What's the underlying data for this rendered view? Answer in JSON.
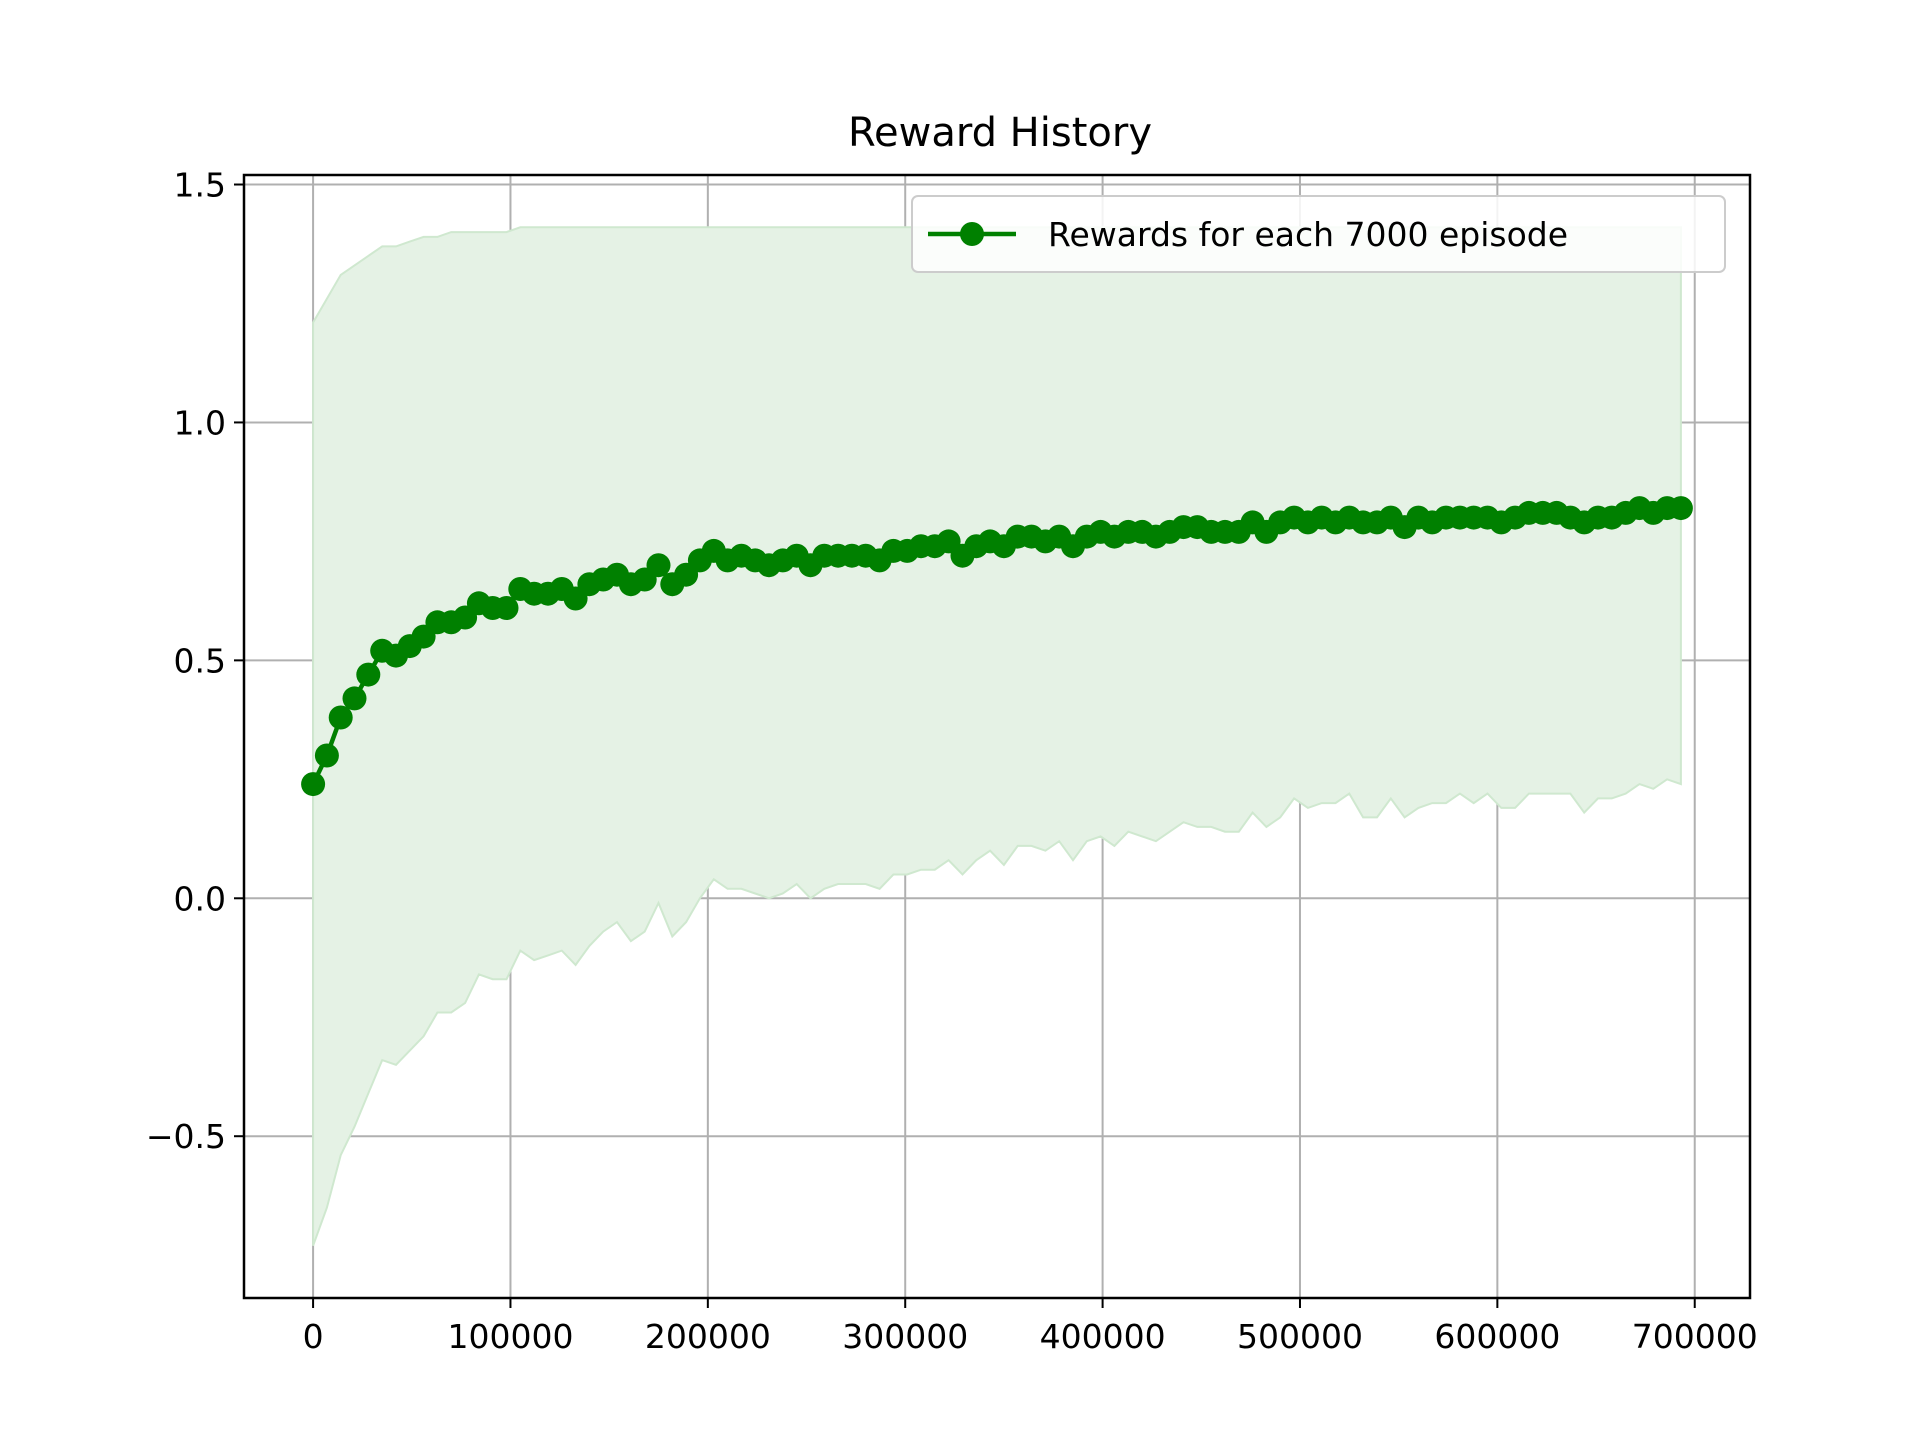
{
  "colors": {
    "line": "#008000",
    "band_fill": "#e5f2e5",
    "band_edge": "#cfe8cf",
    "grid": "#b0b0b0",
    "axis": "#000000",
    "legend_border": "#cccccc"
  },
  "chart_data": {
    "type": "line",
    "title": "Reward History",
    "xlabel": "",
    "ylabel": "",
    "xlim": [
      -35000,
      728000
    ],
    "ylim": [
      -0.84,
      1.52
    ],
    "xticks": [
      0,
      100000,
      200000,
      300000,
      400000,
      500000,
      600000,
      700000
    ],
    "xtick_labels": [
      "0",
      "100000",
      "200000",
      "300000",
      "400000",
      "500000",
      "600000",
      "700000"
    ],
    "yticks": [
      -0.5,
      0.0,
      0.5,
      1.0,
      1.5
    ],
    "ytick_labels": [
      "−0.5",
      "0.0",
      "0.5",
      "1.0",
      "1.5"
    ],
    "grid": true,
    "legend_position": "upper-right",
    "series": [
      {
        "name": "Rewards for each 7000 episode",
        "marker": "circle",
        "x": [
          0,
          7000,
          14000,
          21000,
          28000,
          35000,
          42000,
          49000,
          56000,
          63000,
          70000,
          77000,
          84000,
          91000,
          98000,
          105000,
          112000,
          119000,
          126000,
          133000,
          140000,
          147000,
          154000,
          161000,
          168000,
          175000,
          182000,
          189000,
          196000,
          203000,
          210000,
          217000,
          224000,
          231000,
          238000,
          245000,
          252000,
          259000,
          266000,
          273000,
          280000,
          287000,
          294000,
          301000,
          308000,
          315000,
          322000,
          329000,
          336000,
          343000,
          350000,
          357000,
          364000,
          371000,
          378000,
          385000,
          392000,
          399000,
          406000,
          413000,
          420000,
          427000,
          434000,
          441000,
          448000,
          455000,
          462000,
          469000,
          476000,
          483000,
          490000,
          497000,
          504000,
          511000,
          518000,
          525000,
          532000,
          539000,
          546000,
          553000,
          560000,
          567000,
          574000,
          581000,
          588000,
          595000,
          602000,
          609000,
          616000,
          623000,
          630000,
          637000,
          644000,
          651000,
          658000,
          665000,
          672000,
          679000,
          686000,
          693000
        ],
        "values": [
          0.24,
          0.3,
          0.38,
          0.42,
          0.47,
          0.52,
          0.51,
          0.53,
          0.55,
          0.58,
          0.58,
          0.59,
          0.62,
          0.61,
          0.61,
          0.65,
          0.64,
          0.64,
          0.65,
          0.63,
          0.66,
          0.67,
          0.68,
          0.66,
          0.67,
          0.7,
          0.66,
          0.68,
          0.71,
          0.73,
          0.71,
          0.72,
          0.71,
          0.7,
          0.71,
          0.72,
          0.7,
          0.72,
          0.72,
          0.72,
          0.72,
          0.71,
          0.73,
          0.73,
          0.74,
          0.74,
          0.75,
          0.72,
          0.74,
          0.75,
          0.74,
          0.76,
          0.76,
          0.75,
          0.76,
          0.74,
          0.76,
          0.77,
          0.76,
          0.77,
          0.77,
          0.76,
          0.77,
          0.78,
          0.78,
          0.77,
          0.77,
          0.77,
          0.79,
          0.77,
          0.79,
          0.8,
          0.79,
          0.8,
          0.79,
          0.8,
          0.79,
          0.79,
          0.8,
          0.78,
          0.8,
          0.79,
          0.8,
          0.8,
          0.8,
          0.8,
          0.79,
          0.8,
          0.81,
          0.81,
          0.81,
          0.8,
          0.79,
          0.8,
          0.8,
          0.81,
          0.82,
          0.81,
          0.82,
          0.82
        ],
        "upper": [
          1.21,
          1.26,
          1.31,
          1.33,
          1.35,
          1.37,
          1.37,
          1.38,
          1.39,
          1.39,
          1.4,
          1.4,
          1.4,
          1.4,
          1.4,
          1.41,
          1.41,
          1.41,
          1.41,
          1.41,
          1.41,
          1.41,
          1.41,
          1.41,
          1.41,
          1.41,
          1.41,
          1.41,
          1.41,
          1.41,
          1.41,
          1.41,
          1.41,
          1.41,
          1.41,
          1.41,
          1.41,
          1.41,
          1.41,
          1.41,
          1.41,
          1.41,
          1.41,
          1.41,
          1.41,
          1.41,
          1.41,
          1.41,
          1.41,
          1.41,
          1.41,
          1.41,
          1.41,
          1.41,
          1.41,
          1.41,
          1.41,
          1.41,
          1.41,
          1.41,
          1.41,
          1.41,
          1.41,
          1.41,
          1.41,
          1.41,
          1.41,
          1.41,
          1.41,
          1.41,
          1.41,
          1.41,
          1.41,
          1.41,
          1.41,
          1.41,
          1.41,
          1.41,
          1.41,
          1.41,
          1.41,
          1.41,
          1.41,
          1.41,
          1.41,
          1.41,
          1.41,
          1.41,
          1.41,
          1.41,
          1.41,
          1.41,
          1.41,
          1.41,
          1.41,
          1.41,
          1.41,
          1.41,
          1.41,
          1.41
        ],
        "lower": [
          -0.73,
          -0.65,
          -0.54,
          -0.48,
          -0.41,
          -0.34,
          -0.35,
          -0.32,
          -0.29,
          -0.24,
          -0.24,
          -0.22,
          -0.16,
          -0.17,
          -0.17,
          -0.11,
          -0.13,
          -0.12,
          -0.11,
          -0.14,
          -0.1,
          -0.07,
          -0.05,
          -0.09,
          -0.07,
          -0.01,
          -0.08,
          -0.05,
          0.0,
          0.04,
          0.02,
          0.02,
          0.01,
          0.0,
          0.01,
          0.03,
          0.0,
          0.02,
          0.03,
          0.03,
          0.03,
          0.02,
          0.05,
          0.05,
          0.06,
          0.06,
          0.08,
          0.05,
          0.08,
          0.1,
          0.07,
          0.11,
          0.11,
          0.1,
          0.12,
          0.08,
          0.12,
          0.13,
          0.11,
          0.14,
          0.13,
          0.12,
          0.14,
          0.16,
          0.15,
          0.15,
          0.14,
          0.14,
          0.18,
          0.15,
          0.17,
          0.21,
          0.19,
          0.2,
          0.2,
          0.22,
          0.17,
          0.17,
          0.21,
          0.17,
          0.19,
          0.2,
          0.2,
          0.22,
          0.2,
          0.22,
          0.19,
          0.19,
          0.22,
          0.22,
          0.22,
          0.22,
          0.18,
          0.21,
          0.21,
          0.22,
          0.24,
          0.23,
          0.25,
          0.24
        ]
      }
    ]
  }
}
